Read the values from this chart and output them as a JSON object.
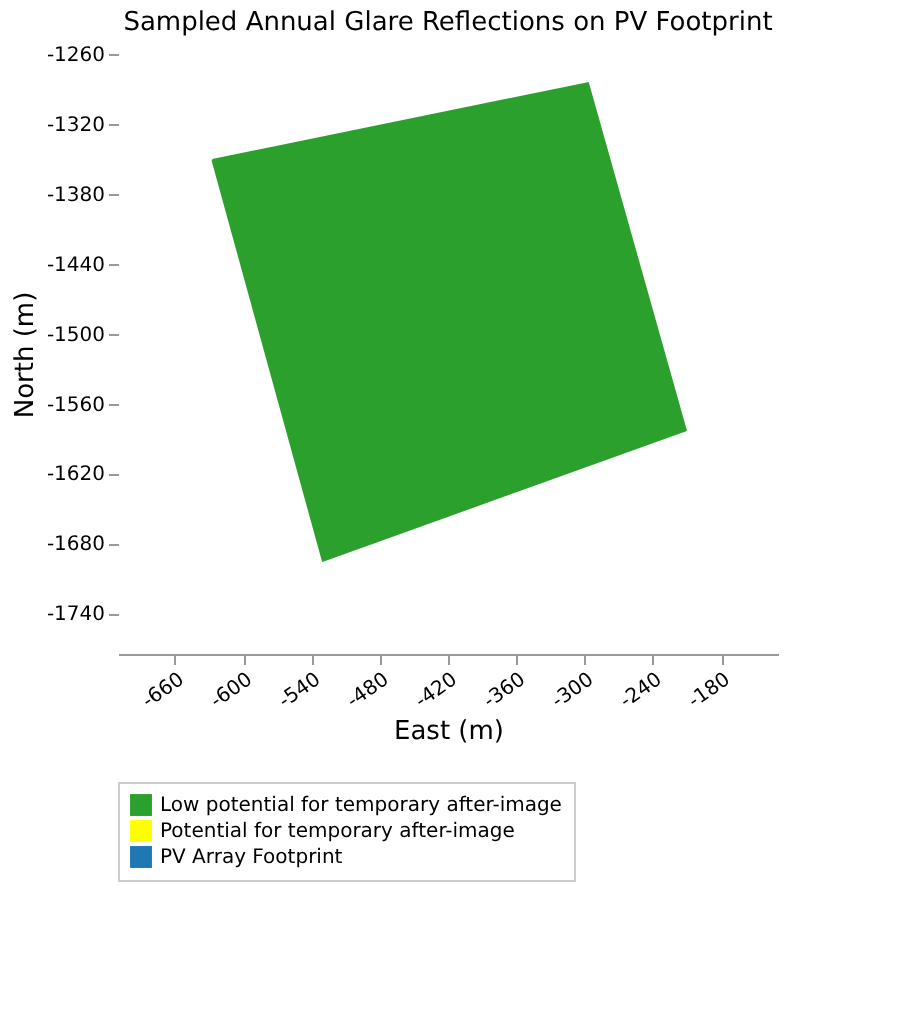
{
  "chart_data": {
    "type": "area",
    "title": "Sampled Annual Glare Reflections on PV Footprint",
    "xlabel": "East (m)",
    "ylabel": "North (m)",
    "series": [
      {
        "name": "Low potential for temporary after-image",
        "color": "#2ca02c",
        "x": [
          -627,
          -297,
          -211,
          -530
        ],
        "values": [
          -1351,
          -1285,
          -1583,
          -1695
        ]
      },
      {
        "name": "Potential for temporary after-image",
        "color": "#ffff00"
      },
      {
        "name": "PV Array Footprint",
        "color": "#1f77b4"
      }
    ],
    "xlim": [
      -710,
      -130
    ],
    "xticks": [
      -660,
      -600,
      -540,
      -480,
      -420,
      -360,
      -300,
      -240,
      -180
    ],
    "ylim": [
      -1775,
      -1260
    ],
    "yticks": [
      -1260,
      -1320,
      -1380,
      -1440,
      -1500,
      -1560,
      -1620,
      -1680,
      -1740
    ],
    "grid": false,
    "legend": "bottom"
  }
}
